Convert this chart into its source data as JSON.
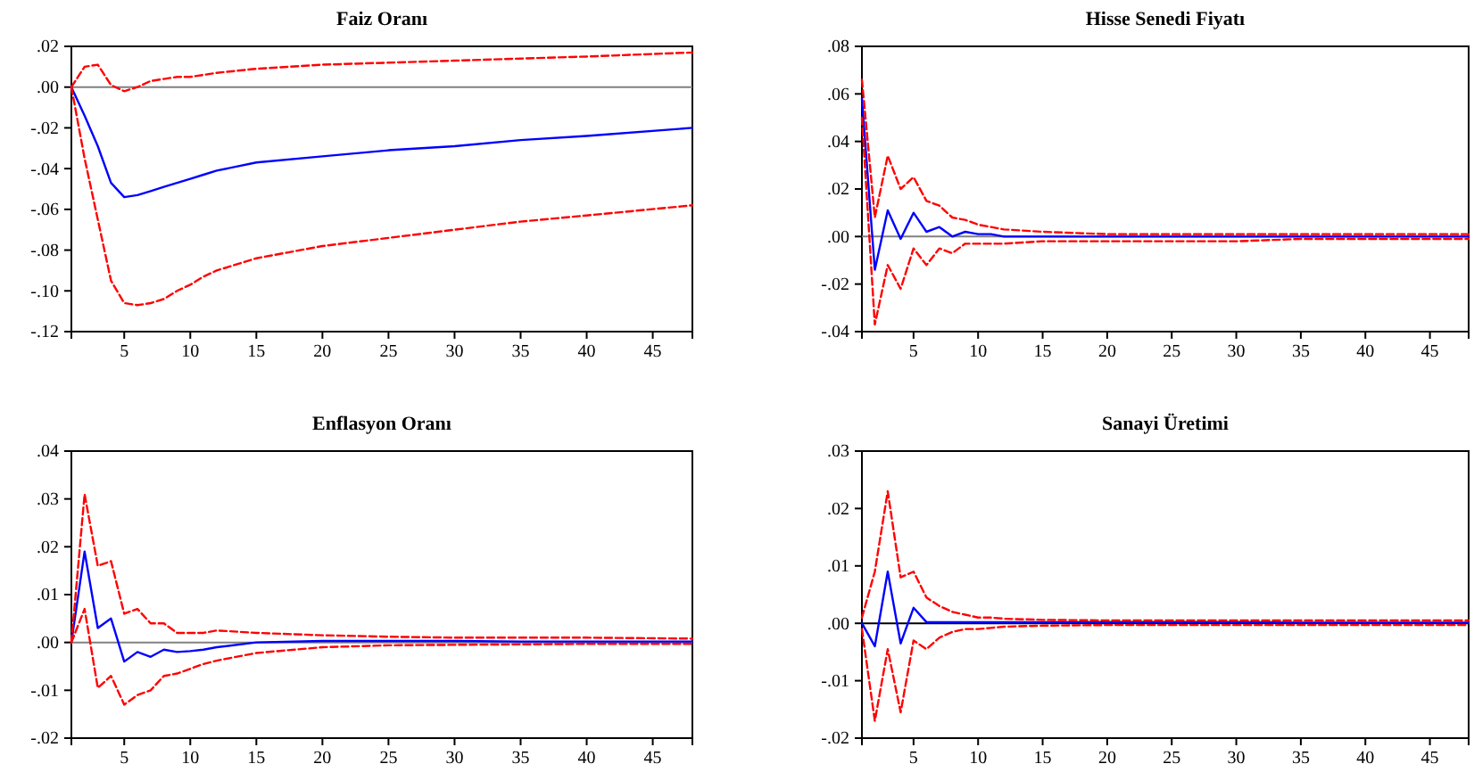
{
  "chart_data": [
    {
      "type": "line",
      "title": "Faiz Oranı",
      "xlim": [
        1,
        48
      ],
      "xticks": [
        5,
        10,
        15,
        20,
        25,
        30,
        35,
        40,
        45
      ],
      "ylim": [
        -0.12,
        0.02
      ],
      "yticks": [
        {
          "value": -0.12,
          "label": "-.12"
        },
        {
          "value": -0.1,
          "label": "-.10"
        },
        {
          "value": -0.08,
          "label": "-.08"
        },
        {
          "value": -0.06,
          "label": "-.06"
        },
        {
          "value": -0.04,
          "label": "-.04"
        },
        {
          "value": -0.02,
          "label": "-.02"
        },
        {
          "value": 0,
          "label": ".00"
        },
        {
          "value": 0.02,
          "label": ".02"
        }
      ],
      "grid": false,
      "ref_lines": [
        {
          "axis": "y",
          "value": 0,
          "color": "#808080"
        }
      ],
      "x": [
        1,
        2,
        3,
        4,
        5,
        6,
        7,
        8,
        9,
        10,
        11,
        12,
        15,
        20,
        25,
        30,
        35,
        40,
        48
      ],
      "series": [
        {
          "color": "#0000ff",
          "line_style": "solid",
          "values": [
            0,
            -0.014,
            -0.029,
            -0.047,
            -0.054,
            -0.053,
            -0.051,
            -0.049,
            -0.047,
            -0.045,
            -0.043,
            -0.041,
            -0.037,
            -0.034,
            -0.031,
            -0.029,
            -0.026,
            -0.024,
            -0.02
          ]
        },
        {
          "color": "#ff0000",
          "line_style": "dashed",
          "values": [
            0,
            0.01,
            0.011,
            0.001,
            -0.002,
            0,
            0.003,
            0.004,
            0.005,
            0.005,
            0.006,
            0.007,
            0.009,
            0.011,
            0.012,
            0.013,
            0.014,
            0.015,
            0.017
          ]
        },
        {
          "color": "#ff0000",
          "line_style": "dashed",
          "values": [
            0,
            -0.035,
            -0.065,
            -0.095,
            -0.106,
            -0.107,
            -0.106,
            -0.104,
            -0.1,
            -0.097,
            -0.093,
            -0.09,
            -0.084,
            -0.078,
            -0.074,
            -0.07,
            -0.066,
            -0.063,
            -0.058
          ]
        }
      ]
    },
    {
      "type": "line",
      "title": "Hisse Senedi Fiyatı",
      "xlim": [
        1,
        48
      ],
      "xticks": [
        5,
        10,
        15,
        20,
        25,
        30,
        35,
        40,
        45
      ],
      "ylim": [
        -0.04,
        0.08
      ],
      "yticks": [
        {
          "value": -0.04,
          "label": "-.04"
        },
        {
          "value": -0.02,
          "label": "-.02"
        },
        {
          "value": 0,
          "label": ".00"
        },
        {
          "value": 0.02,
          "label": ".02"
        },
        {
          "value": 0.04,
          "label": ".04"
        },
        {
          "value": 0.06,
          "label": ".06"
        },
        {
          "value": 0.08,
          "label": ".08"
        }
      ],
      "grid": false,
      "ref_lines": [
        {
          "axis": "y",
          "value": 0,
          "color": "#808080"
        }
      ],
      "x": [
        1,
        2,
        3,
        4,
        5,
        6,
        7,
        8,
        9,
        10,
        11,
        12,
        15,
        20,
        25,
        30,
        35,
        40,
        48
      ],
      "series": [
        {
          "color": "#0000ff",
          "line_style": "solid",
          "values": [
            0.058,
            -0.014,
            0.011,
            -0.001,
            0.01,
            0.002,
            0.004,
            0,
            0.002,
            0.001,
            0.001,
            0,
            0,
            0,
            0,
            0,
            0,
            0,
            0
          ]
        },
        {
          "color": "#ff0000",
          "line_style": "dashed",
          "values": [
            0.066,
            0.008,
            0.034,
            0.02,
            0.025,
            0.015,
            0.013,
            0.008,
            0.007,
            0.005,
            0.004,
            0.003,
            0.002,
            0.001,
            0.001,
            0.001,
            0.001,
            0.001,
            0.001
          ]
        },
        {
          "color": "#ff0000",
          "line_style": "dashed",
          "values": [
            0.05,
            -0.037,
            -0.012,
            -0.022,
            -0.005,
            -0.012,
            -0.005,
            -0.007,
            -0.003,
            -0.003,
            -0.003,
            -0.003,
            -0.002,
            -0.002,
            -0.002,
            -0.002,
            -0.001,
            -0.001,
            -0.001
          ]
        }
      ]
    },
    {
      "type": "line",
      "title": "Enflasyon Oranı",
      "xlim": [
        1,
        48
      ],
      "xticks": [
        5,
        10,
        15,
        20,
        25,
        30,
        35,
        40,
        45
      ],
      "ylim": [
        -0.02,
        0.04
      ],
      "yticks": [
        {
          "value": -0.02,
          "label": "-.02"
        },
        {
          "value": -0.01,
          "label": "-.01"
        },
        {
          "value": 0,
          "label": ".00"
        },
        {
          "value": 0.01,
          "label": ".01"
        },
        {
          "value": 0.02,
          "label": ".02"
        },
        {
          "value": 0.03,
          "label": ".03"
        },
        {
          "value": 0.04,
          "label": ".04"
        }
      ],
      "grid": false,
      "ref_lines": [
        {
          "axis": "y",
          "value": 0,
          "color": "#808080"
        }
      ],
      "x": [
        1,
        2,
        3,
        4,
        5,
        6,
        7,
        8,
        9,
        10,
        11,
        12,
        15,
        20,
        25,
        30,
        35,
        40,
        48
      ],
      "series": [
        {
          "color": "#0000ff",
          "line_style": "solid",
          "values": [
            0,
            0.019,
            0.003,
            0.005,
            -0.004,
            -0.002,
            -0.003,
            -0.0015,
            -0.002,
            -0.0018,
            -0.0015,
            -0.001,
            0,
            0.0003,
            0.0003,
            0.0003,
            0.0002,
            0.0002,
            0.0002
          ]
        },
        {
          "color": "#ff0000",
          "line_style": "dashed",
          "values": [
            0,
            0.031,
            0.016,
            0.017,
            0.006,
            0.007,
            0.004,
            0.004,
            0.002,
            0.002,
            0.002,
            0.0025,
            0.002,
            0.0015,
            0.0012,
            0.001,
            0.001,
            0.001,
            0.0008
          ]
        },
        {
          "color": "#ff0000",
          "line_style": "dashed",
          "values": [
            0,
            0.007,
            -0.0095,
            -0.007,
            -0.013,
            -0.011,
            -0.01,
            -0.007,
            -0.0065,
            -0.0055,
            -0.0045,
            -0.0038,
            -0.0022,
            -0.001,
            -0.0006,
            -0.0005,
            -0.0004,
            -0.0003,
            -0.0003
          ]
        }
      ]
    },
    {
      "type": "line",
      "title": "Sanayi Üretimi",
      "xlim": [
        1,
        48
      ],
      "xticks": [
        5,
        10,
        15,
        20,
        25,
        30,
        35,
        40,
        45
      ],
      "ylim": [
        -0.02,
        0.03
      ],
      "yticks": [
        {
          "value": -0.02,
          "label": "-.02"
        },
        {
          "value": -0.01,
          "label": "-.01"
        },
        {
          "value": 0,
          "label": ".00"
        },
        {
          "value": 0.01,
          "label": ".01"
        },
        {
          "value": 0.02,
          "label": ".02"
        },
        {
          "value": 0.03,
          "label": ".03"
        }
      ],
      "grid": false,
      "ref_lines": [
        {
          "axis": "y",
          "value": 0,
          "color": "#000000"
        }
      ],
      "x": [
        1,
        2,
        3,
        4,
        5,
        6,
        7,
        8,
        9,
        10,
        11,
        12,
        15,
        20,
        25,
        30,
        35,
        40,
        48
      ],
      "series": [
        {
          "color": "#0000ff",
          "line_style": "solid",
          "values": [
            0,
            -0.004,
            0.009,
            -0.0035,
            0.0027,
            0.0002,
            0.0002,
            0.0002,
            0.0002,
            0.0002,
            0.0002,
            0.0002,
            0.0002,
            0.0002,
            0.0002,
            0.0002,
            0.0001,
            0.0001,
            0.0001
          ]
        },
        {
          "color": "#ff0000",
          "line_style": "dashed",
          "values": [
            0.001,
            0.009,
            0.023,
            0.008,
            0.009,
            0.0045,
            0.003,
            0.002,
            0.0015,
            0.001,
            0.001,
            0.0008,
            0.0006,
            0.0005,
            0.0005,
            0.0005,
            0.0005,
            0.0005,
            0.0005
          ]
        },
        {
          "color": "#ff0000",
          "line_style": "dashed",
          "values": [
            -0.001,
            -0.017,
            -0.0045,
            -0.0155,
            -0.003,
            -0.0045,
            -0.0025,
            -0.0015,
            -0.001,
            -0.001,
            -0.0008,
            -0.0006,
            -0.0004,
            -0.0003,
            -0.0003,
            -0.0003,
            -0.0003,
            -0.0003,
            -0.0003
          ]
        }
      ]
    }
  ]
}
